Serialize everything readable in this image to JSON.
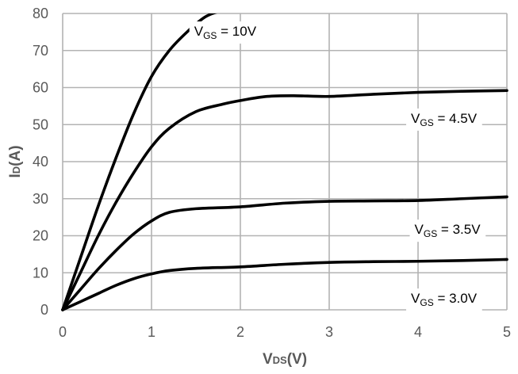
{
  "chart_data": {
    "type": "line",
    "title": "",
    "xlabel": "VDS(V)",
    "xlabel_main": "V",
    "xlabel_sub": "DS",
    "xlabel_unit": "(V)",
    "ylabel": "ID(A)",
    "ylabel_main": "I",
    "ylabel_sub": "D",
    "ylabel_unit": "(A)",
    "xlim": [
      0,
      5
    ],
    "ylim": [
      0,
      80
    ],
    "xticks": [
      0,
      1,
      2,
      3,
      4,
      5
    ],
    "yticks": [
      0,
      10,
      20,
      30,
      40,
      50,
      60,
      70,
      80
    ],
    "grid": true,
    "legend": "inline labels",
    "series": [
      {
        "name": "VGS = 10V",
        "label_main": "V",
        "label_sub": "GS",
        "label_value": " = 10V",
        "label_pos": [
          1.48,
          74
        ],
        "x": [
          0,
          0.2,
          0.4,
          0.6,
          0.8,
          1.0,
          1.2,
          1.4,
          1.6,
          1.75
        ],
        "y": [
          0,
          14,
          28,
          41,
          53,
          63,
          70,
          75,
          79,
          80.5
        ]
      },
      {
        "name": "VGS = 4.5V",
        "label_main": "V",
        "label_sub": "GS",
        "label_value": " = 4.5V",
        "label_pos": [
          3.92,
          50.5
        ],
        "x": [
          0,
          0.2,
          0.4,
          0.6,
          0.8,
          1.0,
          1.2,
          1.5,
          1.8,
          2.0,
          2.3,
          2.6,
          3.0,
          3.5,
          4.0,
          4.5,
          5.0
        ],
        "y": [
          0,
          10,
          20,
          29,
          37,
          44,
          49,
          53.5,
          55.5,
          56.5,
          57.6,
          57.8,
          57.6,
          58.2,
          58.7,
          59,
          59.2
        ]
      },
      {
        "name": "VGS = 3.5V",
        "label_main": "V",
        "label_sub": "GS",
        "label_value": " = 3.5V",
        "label_pos": [
          3.96,
          20.5
        ],
        "x": [
          0,
          0.2,
          0.4,
          0.6,
          0.8,
          1.0,
          1.2,
          1.5,
          2.0,
          2.5,
          3.0,
          3.5,
          4.0,
          4.5,
          5.0
        ],
        "y": [
          0,
          5.5,
          11,
          16,
          20.5,
          24,
          26.3,
          27.3,
          27.8,
          28.8,
          29.3,
          29.4,
          29.5,
          30,
          30.5
        ]
      },
      {
        "name": "VGS = 3.0V",
        "label_main": "V",
        "label_sub": "GS",
        "label_value": " = 3.0V",
        "label_pos": [
          3.92,
          1.9
        ],
        "x": [
          0,
          0.2,
          0.4,
          0.6,
          0.8,
          1.0,
          1.2,
          1.5,
          2.0,
          2.5,
          3.0,
          3.5,
          4.0,
          4.5,
          5.0
        ],
        "y": [
          0,
          2.2,
          4.4,
          6.6,
          8.4,
          9.7,
          10.6,
          11.2,
          11.6,
          12.3,
          12.8,
          13.0,
          13.1,
          13.3,
          13.6
        ]
      }
    ]
  }
}
